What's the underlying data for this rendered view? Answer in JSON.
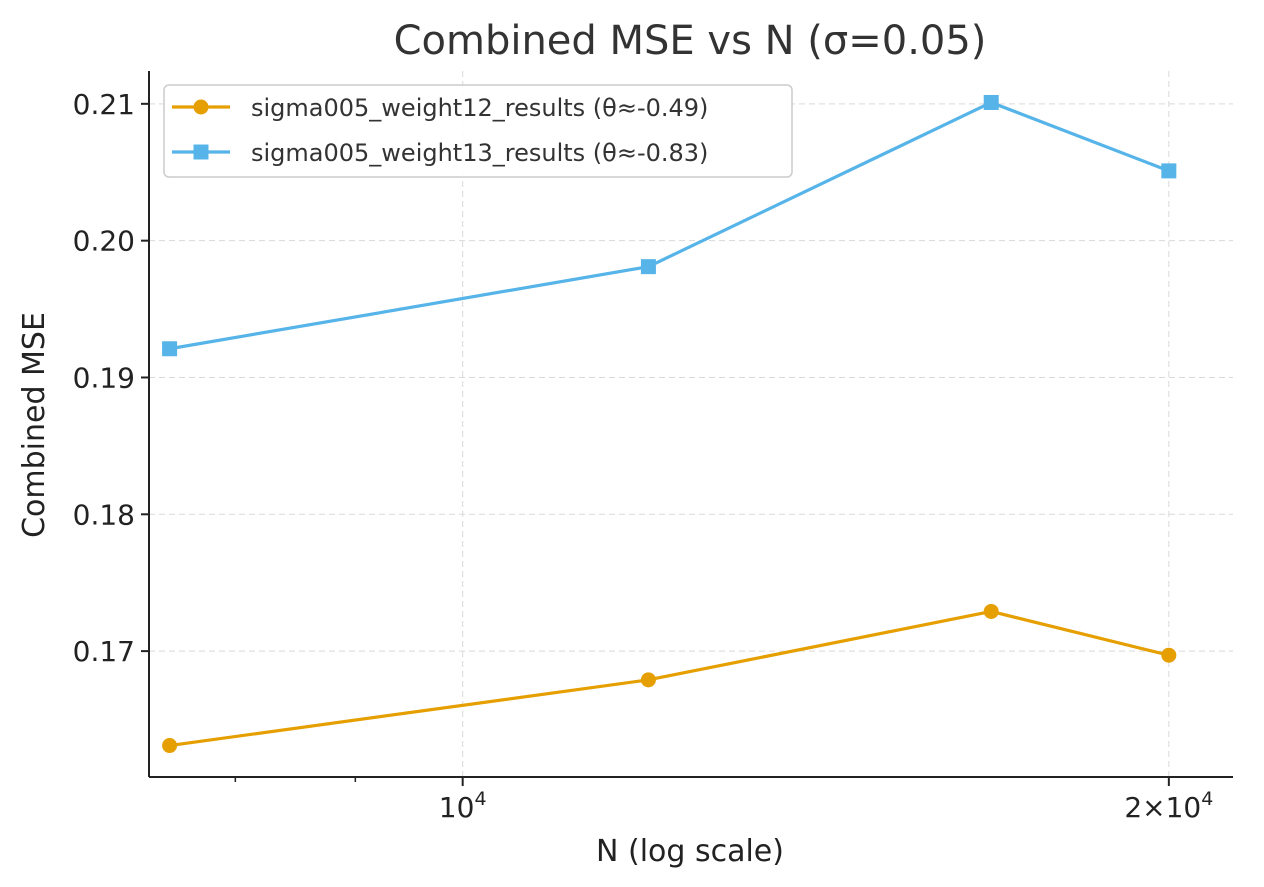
{
  "chart_data": {
    "type": "line",
    "title": "Combined MSE vs N (σ=0.05)",
    "xlabel": "N (log scale)",
    "ylabel": "Combined MSE",
    "xscale": "log",
    "xlim": [
      7350,
      21300
    ],
    "ylim": [
      0.1608,
      0.2124
    ],
    "grid": true,
    "legend_position": "top-left",
    "x": [
      7500,
      12000,
      16800,
      20000
    ],
    "x_ticks": [
      {
        "value": 10000,
        "base": "10",
        "exp": "4"
      },
      {
        "value": 20000,
        "base": "2×10",
        "exp": "4"
      }
    ],
    "x_minor_ticks": [
      7000,
      8000,
      9000,
      30000
    ],
    "y_ticks": [
      "0.17",
      "0.18",
      "0.19",
      "0.20",
      "0.21"
    ],
    "series": [
      {
        "name": "sigma005_weight12_results (θ≈-0.49)",
        "color": "#E69F00",
        "marker": "circle",
        "values": [
          0.1631,
          0.1679,
          0.1729,
          0.1697
        ]
      },
      {
        "name": "sigma005_weight13_results (θ≈-0.83)",
        "color": "#56B4E9",
        "marker": "square",
        "values": [
          0.1921,
          0.1981,
          0.2101,
          0.2051
        ]
      }
    ]
  }
}
